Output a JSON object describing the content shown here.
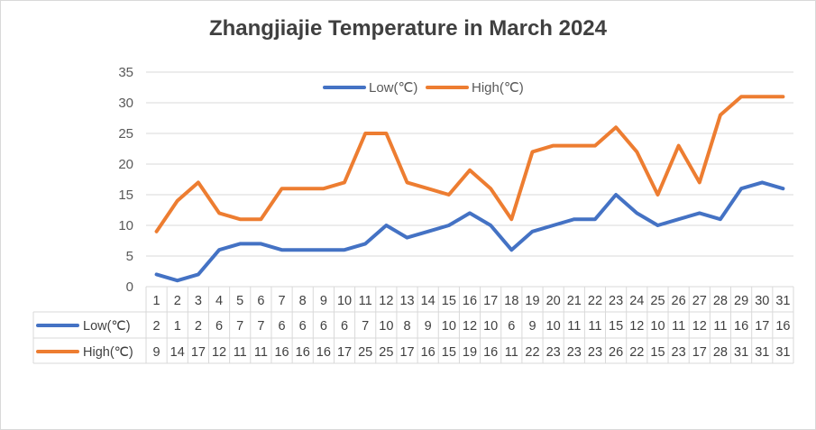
{
  "chart_data": {
    "type": "line",
    "title": "Zhangjiajie Temperature in March 2024",
    "categories": [
      "1",
      "2",
      "3",
      "4",
      "5",
      "6",
      "7",
      "8",
      "9",
      "10",
      "11",
      "12",
      "13",
      "14",
      "15",
      "16",
      "17",
      "18",
      "19",
      "20",
      "21",
      "22",
      "23",
      "24",
      "25",
      "26",
      "27",
      "28",
      "29",
      "30",
      "31"
    ],
    "series": [
      {
        "name": "Low(℃)",
        "color": "#4472C4",
        "values": [
          2,
          1,
          2,
          6,
          7,
          7,
          6,
          6,
          6,
          6,
          7,
          10,
          8,
          9,
          10,
          12,
          10,
          6,
          9,
          10,
          11,
          11,
          15,
          12,
          10,
          11,
          12,
          11,
          16,
          17,
          16
        ]
      },
      {
        "name": "High(℃)",
        "color": "#ED7D31",
        "values": [
          9,
          14,
          17,
          12,
          11,
          11,
          16,
          16,
          16,
          17,
          25,
          25,
          17,
          16,
          15,
          19,
          16,
          11,
          22,
          23,
          23,
          23,
          26,
          22,
          15,
          23,
          17,
          28,
          31,
          31,
          31
        ]
      }
    ],
    "ylim": [
      0,
      35
    ],
    "yticks": [
      0,
      5,
      10,
      15,
      20,
      25,
      30,
      35
    ],
    "grid": true,
    "legend": "top-center",
    "data_table": true,
    "xlabel": "",
    "ylabel": ""
  }
}
